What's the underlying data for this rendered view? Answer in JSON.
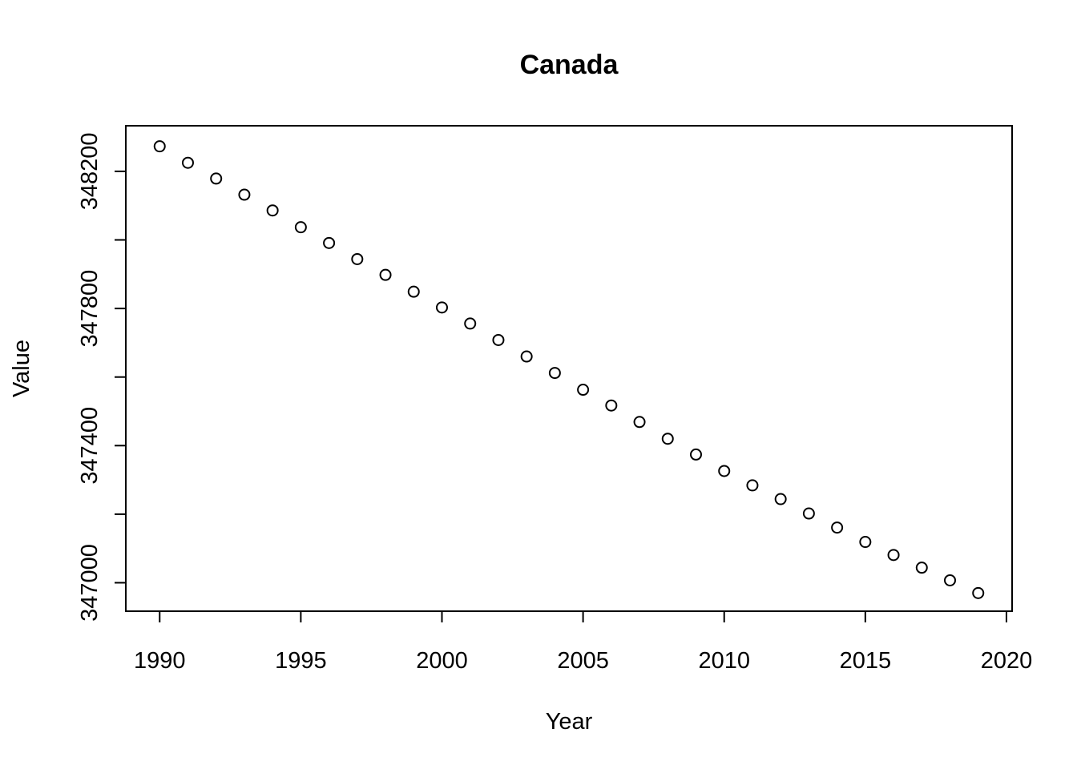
{
  "chart_data": {
    "type": "scatter",
    "title": "Canada",
    "xlabel": "Year",
    "ylabel": "Value",
    "xlim": [
      1988.8,
      2020.2
    ],
    "ylim": [
      346917,
      348333
    ],
    "x_ticks": [
      1990,
      1995,
      2000,
      2005,
      2010,
      2015,
      2020
    ],
    "y_ticks": [
      347000,
      347200,
      347400,
      347600,
      347800,
      348000,
      348200
    ],
    "y_tick_labels": [
      "347000",
      "",
      "347400",
      "",
      "347800",
      "",
      "348200"
    ],
    "grid": false,
    "legend": "none",
    "marker": "open-circle",
    "series": [
      {
        "x": [
          1990,
          1991,
          1992,
          1993,
          1994,
          1995,
          1996,
          1997,
          1998,
          1999,
          2000,
          2001,
          2002,
          2003,
          2004,
          2005,
          2006,
          2007,
          2008,
          2009,
          2010,
          2011,
          2012,
          2013,
          2014,
          2015,
          2016,
          2017,
          2018,
          2019
        ],
        "y": [
          348273,
          348225,
          348179,
          348132,
          348086,
          348037,
          347991,
          347944,
          347898,
          347849,
          347803,
          347756,
          347708,
          347660,
          347612,
          347563,
          347517,
          347469,
          347420,
          347374,
          347326,
          347284,
          347244,
          347202,
          347161,
          347119,
          347081,
          347044,
          347007,
          346970
        ]
      }
    ]
  }
}
